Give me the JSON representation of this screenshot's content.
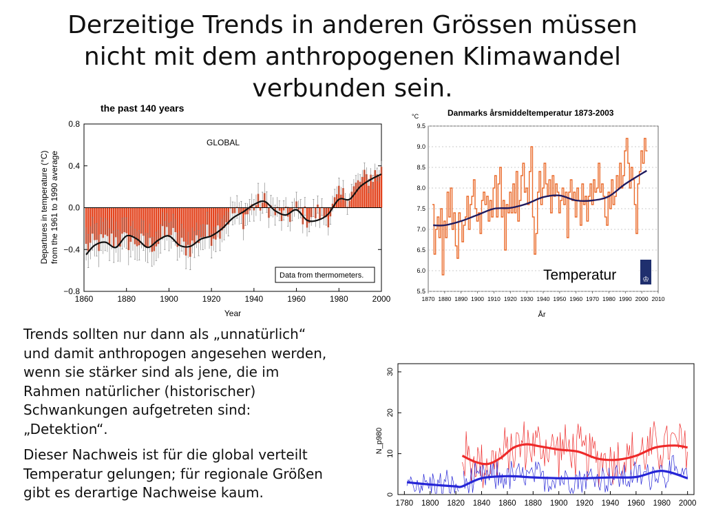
{
  "slide": {
    "title_lines": [
      "Derzeitige Trends in anderen Grössen müssen",
      "nicht mit dem anthropogenen Klimawandel",
      "verbunden sein."
    ],
    "paragraph1_lines": [
      "Trends sollten nur dann als „unnatürlich“",
      "und damit anthropogen angesehen werden,",
      "wenn sie stärker sind als jene, die im",
      "Rahmen natürlicher (historischer)",
      "Schwankungen aufgetreten sind:",
      "„Detektion“."
    ],
    "paragraph2_lines": [
      "Dieser Nachweis ist für die global verteilt",
      "Temperatur gelungen; für regionale Größen",
      "gibt es derartige Nachweise kaum."
    ],
    "temperatur_label": "Temperatur"
  },
  "colors": {
    "bar_red": "#e3431d",
    "smooth_black": "#111111",
    "dk_orange": "#ea6a2a",
    "dk_smooth": "#1f1a5e",
    "dmi_logo": "#1f2f6e",
    "series_red": "#ee2a2a",
    "series_blue": "#2626d6"
  },
  "chart_data": [
    {
      "type": "bar",
      "title": "the past 140 years",
      "annotation": "GLOBAL",
      "note": "Data from thermometers.",
      "xlabel": "Year",
      "ylabel_lines": [
        "Departures in temperature (°C)",
        "from the 1961 to 1990 average"
      ],
      "xlim": [
        1860,
        2000
      ],
      "ylim": [
        -0.8,
        0.8
      ],
      "xticks": [
        1860,
        1880,
        1900,
        1920,
        1940,
        1960,
        1980,
        2000
      ],
      "yticks": [
        0.8,
        0.4,
        0.0,
        -0.4,
        -0.8
      ],
      "ytick_labels": [
        "0.8",
        "0.4",
        "0.0",
        "−0.4",
        "−0.8"
      ],
      "anomaly_keyframes": {
        "x": [
          1861,
          1865,
          1870,
          1875,
          1880,
          1885,
          1890,
          1895,
          1900,
          1905,
          1910,
          1915,
          1920,
          1925,
          1930,
          1935,
          1940,
          1945,
          1950,
          1955,
          1960,
          1965,
          1970,
          1975,
          1980,
          1985,
          1990,
          1995,
          2000
        ],
        "y": [
          -0.38,
          -0.35,
          -0.33,
          -0.3,
          -0.32,
          -0.32,
          -0.37,
          -0.32,
          -0.22,
          -0.36,
          -0.38,
          -0.26,
          -0.26,
          -0.17,
          -0.05,
          -0.1,
          0.02,
          0.05,
          -0.05,
          -0.1,
          -0.02,
          -0.1,
          -0.05,
          -0.08,
          0.1,
          0.12,
          0.25,
          0.3,
          0.35
        ]
      },
      "smooth_keyframes": {
        "x": [
          1861,
          1865,
          1870,
          1875,
          1880,
          1885,
          1890,
          1895,
          1900,
          1905,
          1910,
          1915,
          1920,
          1925,
          1930,
          1935,
          1940,
          1945,
          1950,
          1955,
          1960,
          1965,
          1970,
          1975,
          1980,
          1985,
          1990,
          1995,
          2000
        ],
        "y": [
          -0.45,
          -0.36,
          -0.33,
          -0.38,
          -0.27,
          -0.3,
          -0.38,
          -0.31,
          -0.27,
          -0.36,
          -0.37,
          -0.3,
          -0.27,
          -0.2,
          -0.1,
          -0.04,
          0.03,
          0.06,
          -0.03,
          -0.07,
          -0.02,
          -0.12,
          -0.12,
          -0.06,
          0.08,
          0.08,
          0.2,
          0.27,
          0.32
        ]
      }
    },
    {
      "type": "line",
      "title": "Danmarks årsmiddeltemperatur 1873-2003",
      "xlabel": "År",
      "ylabel": "°C",
      "xlim": [
        1870,
        2010
      ],
      "ylim": [
        5.5,
        9.5
      ],
      "xticks": [
        1870,
        1880,
        1890,
        1900,
        1910,
        1920,
        1930,
        1940,
        1950,
        1960,
        1970,
        1980,
        1990,
        2000,
        2010
      ],
      "yticks": [
        9.5,
        9.0,
        8.5,
        8.0,
        7.5,
        7.0,
        6.5,
        6.0,
        5.5
      ],
      "ytick_labels": [
        "9.5",
        "9.0",
        "8.5",
        "8.0",
        "7.5",
        "7.0",
        "6.5",
        "6.0",
        "5.5"
      ],
      "annual_series": {
        "x_start": 1873,
        "values": [
          7.6,
          6.4,
          7.0,
          7.3,
          6.8,
          7.5,
          5.9,
          7.2,
          6.8,
          7.9,
          7.3,
          8.0,
          7.0,
          7.4,
          6.6,
          6.3,
          7.4,
          7.2,
          6.7,
          7.1,
          7.3,
          7.8,
          7.0,
          7.6,
          7.8,
          8.2,
          7.5,
          7.2,
          7.4,
          6.9,
          7.7,
          7.9,
          7.6,
          7.8,
          7.2,
          7.7,
          7.3,
          8.0,
          8.3,
          7.3,
          8.1,
          8.5,
          7.3,
          7.7,
          6.5,
          7.6,
          7.4,
          7.9,
          7.4,
          8.1,
          7.4,
          8.4,
          7.2,
          7.7,
          8.3,
          8.6,
          7.9,
          8.0,
          7.6,
          8.4,
          9.0,
          7.3,
          6.4,
          6.9,
          7.9,
          8.4,
          7.6,
          8.0,
          8.6,
          8.1,
          7.8,
          8.2,
          7.4,
          8.3,
          7.8,
          8.1,
          7.9,
          7.4,
          7.7,
          8.0,
          7.6,
          7.9,
          6.8,
          7.9,
          8.2,
          7.7,
          7.9,
          7.3,
          8.0,
          7.7,
          7.1,
          8.1,
          7.6,
          7.8,
          7.2,
          7.8,
          8.1,
          7.6,
          8.2,
          7.9,
          8.0,
          8.6,
          7.9,
          8.1,
          7.8,
          7.3,
          7.1,
          7.9,
          7.5,
          8.2,
          7.6,
          7.8,
          8.3,
          8.0,
          8.6,
          8.0,
          8.3,
          8.9,
          9.2,
          8.6,
          8.0,
          8.5,
          8.2,
          7.6,
          6.9,
          8.1,
          8.4,
          8.9,
          8.6,
          9.2,
          8.9
        ]
      },
      "smooth_keyframes": {
        "x": [
          1873,
          1880,
          1890,
          1900,
          1910,
          1920,
          1930,
          1940,
          1950,
          1960,
          1970,
          1980,
          1990,
          2003
        ],
        "y": [
          7.1,
          7.1,
          7.2,
          7.35,
          7.5,
          7.52,
          7.62,
          7.78,
          7.82,
          7.7,
          7.7,
          7.8,
          8.1,
          8.42
        ]
      }
    },
    {
      "type": "line",
      "ylabel": "N_p980",
      "xlim": [
        1775,
        2005
      ],
      "ylim": [
        0,
        32
      ],
      "xticks": [
        1780,
        1800,
        1820,
        1840,
        1860,
        1880,
        1900,
        1920,
        1940,
        1960,
        1980,
        2000
      ],
      "yticks": [
        0,
        10,
        20,
        30
      ],
      "ytick_labels": [
        "0",
        "10",
        "20",
        "30"
      ],
      "series": [
        {
          "color": "red",
          "smooth_keyframes": {
            "x": [
              1825,
              1835,
              1845,
              1855,
              1865,
              1875,
              1885,
              1900,
              1915,
              1930,
              1945,
              1960,
              1975,
              1990,
              2000
            ],
            "y": [
              9.5,
              8.0,
              7.5,
              9.0,
              11.5,
              12.3,
              11.8,
              11.0,
              10.5,
              8.8,
              8.5,
              9.5,
              11.5,
              12.0,
              11.5
            ]
          }
        },
        {
          "color": "blue",
          "smooth_keyframes": {
            "x": [
              1782,
              1795,
              1810,
              1820,
              1825,
              1840,
              1860,
              1880,
              1900,
              1920,
              1940,
              1960,
              1980,
              2000
            ],
            "y": [
              3.0,
              2.6,
              2.2,
              2.0,
              2.0,
              4.0,
              4.5,
              4.2,
              4.0,
              4.0,
              4.2,
              4.3,
              5.8,
              4.0
            ]
          }
        }
      ]
    }
  ]
}
